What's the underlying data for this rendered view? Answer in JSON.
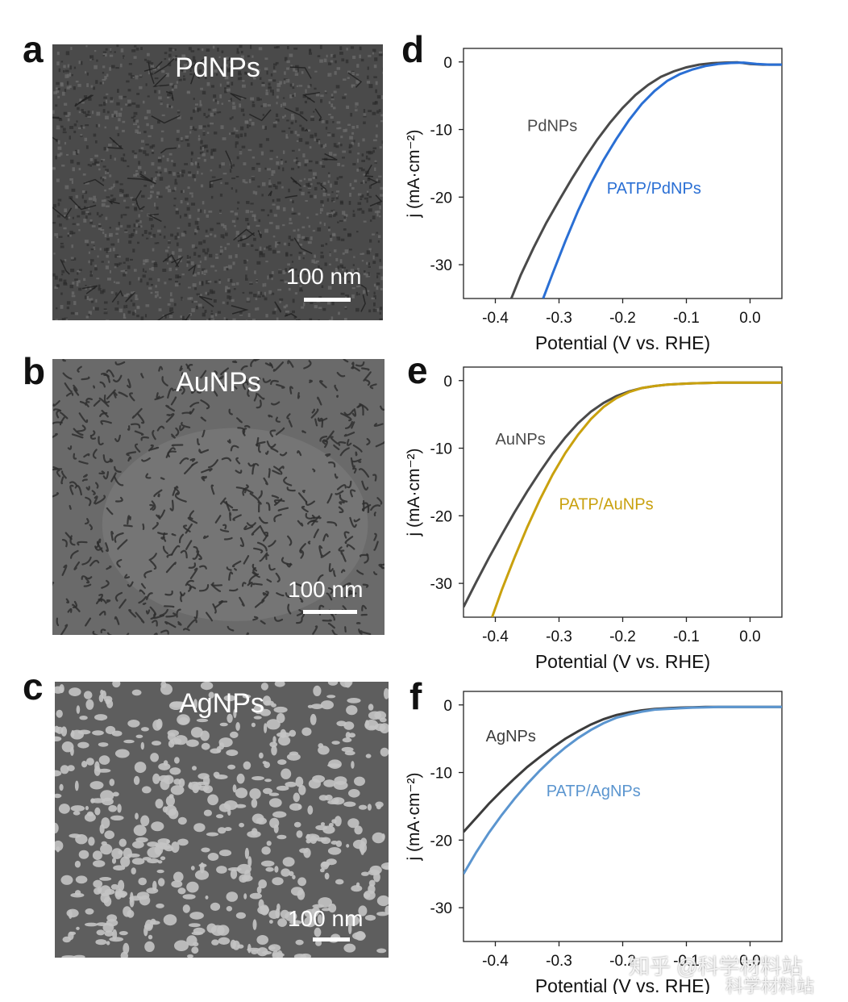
{
  "sem_panels": [
    {
      "letter": "a",
      "label": "PdNPs",
      "scale": "100 nm",
      "tone": "#4a4a4a",
      "style": "grain"
    },
    {
      "letter": "b",
      "label": "AuNPs",
      "scale": "100 nm",
      "tone": "#6a6a6a",
      "style": "worm"
    },
    {
      "letter": "c",
      "label": "AgNPs",
      "scale": "100 nm",
      "tone": "#5e5e5e",
      "style": "particles"
    }
  ],
  "watermark": {
    "text": "知乎 @科学材料站",
    "sub": "科学材料站"
  },
  "chart_data": [
    {
      "letter": "d",
      "type": "line",
      "xlabel": "Potential (V vs. RHE)",
      "ylabel": "j (mA·cm⁻²)",
      "xlim": [
        -0.45,
        0.05
      ],
      "ylim": [
        -35,
        2
      ],
      "xticks": [
        -0.4,
        -0.3,
        -0.2,
        -0.1,
        0.0
      ],
      "xtick_labels": [
        "-0.4",
        "-0.3",
        "-0.2",
        "-0.1",
        "0.0"
      ],
      "yticks": [
        0,
        -10,
        -20,
        -30
      ],
      "ytick_labels": [
        "0",
        "-10",
        "-20",
        "-30"
      ],
      "series": [
        {
          "name": "PdNPs",
          "color": "#4a4a4a",
          "x": [
            -0.375,
            -0.36,
            -0.34,
            -0.32,
            -0.3,
            -0.28,
            -0.26,
            -0.24,
            -0.22,
            -0.2,
            -0.18,
            -0.16,
            -0.14,
            -0.12,
            -0.1,
            -0.08,
            -0.06,
            -0.04,
            -0.02,
            0.0,
            0.02,
            0.05
          ],
          "y": [
            -35,
            -31.5,
            -27.5,
            -23.8,
            -20.5,
            -17.3,
            -14.3,
            -11.5,
            -9.0,
            -6.8,
            -4.9,
            -3.4,
            -2.2,
            -1.4,
            -0.8,
            -0.4,
            -0.2,
            -0.1,
            -0.05,
            -0.3,
            -0.4,
            -0.4
          ]
        },
        {
          "name": "PATP/PdNPs",
          "color": "#2a6fd4",
          "x": [
            -0.325,
            -0.31,
            -0.29,
            -0.27,
            -0.25,
            -0.23,
            -0.21,
            -0.19,
            -0.17,
            -0.15,
            -0.13,
            -0.11,
            -0.09,
            -0.07,
            -0.05,
            -0.03,
            -0.01,
            0.01,
            0.03,
            0.05
          ],
          "y": [
            -35,
            -31.3,
            -26.5,
            -22.0,
            -18.0,
            -14.5,
            -11.4,
            -8.6,
            -6.2,
            -4.3,
            -2.8,
            -1.8,
            -1.1,
            -0.6,
            -0.3,
            -0.15,
            -0.1,
            -0.3,
            -0.4,
            -0.4
          ]
        }
      ]
    },
    {
      "letter": "e",
      "type": "line",
      "xlabel": "Potential (V vs. RHE)",
      "ylabel": "j (mA·cm⁻²)",
      "xlim": [
        -0.45,
        0.05
      ],
      "ylim": [
        -35,
        2
      ],
      "xticks": [
        -0.4,
        -0.3,
        -0.2,
        -0.1,
        0.0
      ],
      "xtick_labels": [
        "-0.4",
        "-0.3",
        "-0.2",
        "-0.1",
        "0.0"
      ],
      "yticks": [
        0,
        -10,
        -20,
        -30
      ],
      "ytick_labels": [
        "0",
        "-10",
        "-20",
        "-30"
      ],
      "series": [
        {
          "name": "AuNPs",
          "color": "#4a4a4a",
          "x": [
            -0.45,
            -0.43,
            -0.41,
            -0.39,
            -0.37,
            -0.35,
            -0.33,
            -0.31,
            -0.29,
            -0.27,
            -0.25,
            -0.23,
            -0.21,
            -0.19,
            -0.17,
            -0.15,
            -0.13,
            -0.11,
            -0.09,
            -0.07,
            -0.05,
            0.0,
            0.05
          ],
          "y": [
            -33.5,
            -29.8,
            -26.2,
            -22.8,
            -19.5,
            -16.4,
            -13.5,
            -10.8,
            -8.4,
            -6.3,
            -4.6,
            -3.3,
            -2.3,
            -1.6,
            -1.1,
            -0.8,
            -0.6,
            -0.5,
            -0.4,
            -0.35,
            -0.3,
            -0.3,
            -0.3
          ]
        },
        {
          "name": "PATP/AuNPs",
          "color": "#c9a10e",
          "x": [
            -0.405,
            -0.39,
            -0.37,
            -0.35,
            -0.33,
            -0.31,
            -0.29,
            -0.27,
            -0.25,
            -0.23,
            -0.21,
            -0.19,
            -0.17,
            -0.15,
            -0.13,
            -0.11,
            -0.09,
            -0.07,
            -0.05,
            0.0,
            0.05
          ],
          "y": [
            -35,
            -31.0,
            -26.2,
            -21.7,
            -17.6,
            -13.9,
            -10.7,
            -8.0,
            -5.7,
            -3.9,
            -2.6,
            -1.7,
            -1.1,
            -0.8,
            -0.6,
            -0.5,
            -0.4,
            -0.35,
            -0.3,
            -0.3,
            -0.3
          ]
        }
      ]
    },
    {
      "letter": "f",
      "type": "line",
      "xlabel": "Potential (V vs. RHE)",
      "ylabel": "j (mA·cm⁻²)",
      "xlim": [
        -0.45,
        0.05
      ],
      "ylim": [
        -35,
        2
      ],
      "xticks": [
        -0.4,
        -0.3,
        -0.2,
        -0.1,
        0.0
      ],
      "xtick_labels": [
        "-0.4",
        "-0.3",
        "-0.2",
        "-0.1",
        "0.0"
      ],
      "yticks": [
        0,
        -10,
        -20,
        -30
      ],
      "ytick_labels": [
        "0",
        "-10",
        "-20",
        "-30"
      ],
      "series": [
        {
          "name": "AgNPs",
          "color": "#3c3c3c",
          "x": [
            -0.45,
            -0.43,
            -0.41,
            -0.39,
            -0.37,
            -0.35,
            -0.33,
            -0.31,
            -0.29,
            -0.27,
            -0.25,
            -0.23,
            -0.21,
            -0.19,
            -0.17,
            -0.15,
            -0.13,
            -0.11,
            -0.09,
            -0.07,
            -0.05,
            0.0,
            0.05
          ],
          "y": [
            -18.8,
            -16.7,
            -14.6,
            -12.7,
            -10.9,
            -9.2,
            -7.7,
            -6.3,
            -5.0,
            -3.9,
            -2.9,
            -2.1,
            -1.5,
            -1.1,
            -0.8,
            -0.6,
            -0.5,
            -0.4,
            -0.35,
            -0.3,
            -0.3,
            -0.3,
            -0.3
          ]
        },
        {
          "name": "PATP/AgNPs",
          "color": "#5b95cf",
          "x": [
            -0.45,
            -0.43,
            -0.41,
            -0.39,
            -0.37,
            -0.35,
            -0.33,
            -0.31,
            -0.29,
            -0.27,
            -0.25,
            -0.23,
            -0.21,
            -0.19,
            -0.17,
            -0.15,
            -0.13,
            -0.11,
            -0.09,
            -0.07,
            -0.05,
            0.0,
            0.05
          ],
          "y": [
            -25.0,
            -21.8,
            -18.9,
            -16.3,
            -13.9,
            -11.7,
            -9.7,
            -7.9,
            -6.3,
            -4.9,
            -3.7,
            -2.7,
            -1.9,
            -1.4,
            -1.0,
            -0.7,
            -0.6,
            -0.5,
            -0.4,
            -0.35,
            -0.3,
            -0.3,
            -0.3
          ]
        }
      ]
    }
  ]
}
